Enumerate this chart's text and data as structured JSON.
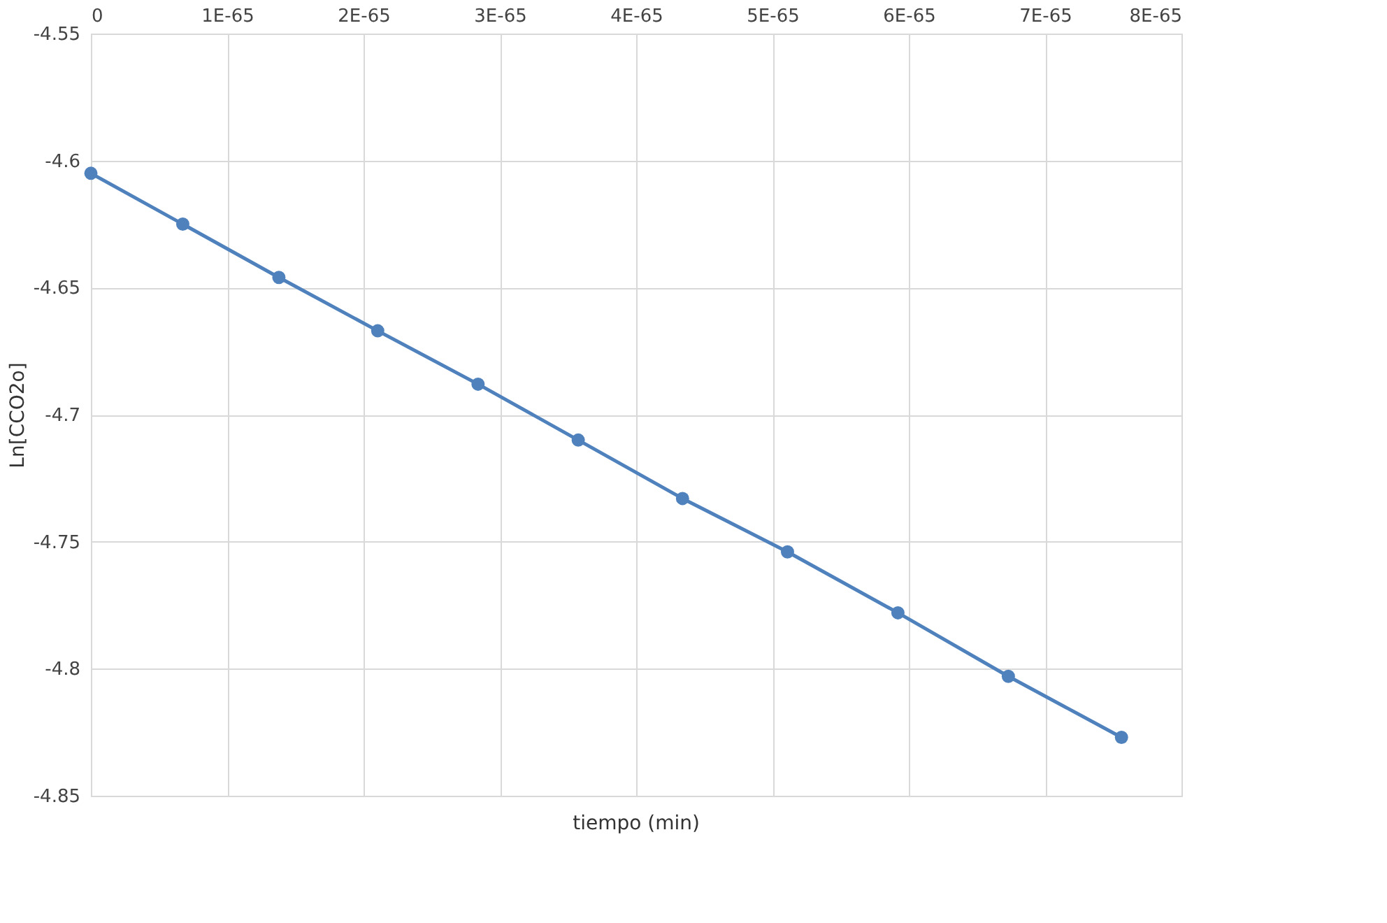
{
  "chart_data": {
    "type": "line",
    "xlabel": "tiempo (min)",
    "ylabel": "Ln[CCO2o]",
    "x": [
      0,
      6.74e-66,
      1.379e-65,
      2.104e-65,
      2.84e-65,
      3.575e-65,
      4.34e-65,
      5.11e-65,
      5.92e-65,
      6.73e-65,
      7.56e-65
    ],
    "series": [
      {
        "color": "#4f81bd",
        "values": [
          -4.605,
          -4.625,
          -4.646,
          -4.667,
          -4.688,
          -4.71,
          -4.733,
          -4.754,
          -4.778,
          -4.803,
          -4.827
        ]
      }
    ],
    "xlim": [
      0,
      8e-65
    ],
    "xticks": [
      0,
      {
        "value": 1e-65,
        "label": "1E-65"
      },
      {
        "value": 2e-65,
        "label": "2E-65"
      },
      {
        "value": 3e-65,
        "label": "3E-65"
      },
      {
        "value": 4e-65,
        "label": "4E-65"
      },
      {
        "value": 5e-65,
        "label": "5E-65"
      },
      {
        "value": 6e-65,
        "label": "6E-65"
      },
      {
        "value": 7e-65,
        "label": "7E-65"
      },
      {
        "value": 8e-65,
        "label": "8E-65"
      }
    ],
    "ylim": [
      -4.85,
      -4.55
    ],
    "yticks": [
      -4.85,
      -4.8,
      -4.75,
      -4.7,
      -4.65,
      -4.6,
      -4.55
    ],
    "grid": true,
    "marker": "circle",
    "line_style": "solid"
  }
}
